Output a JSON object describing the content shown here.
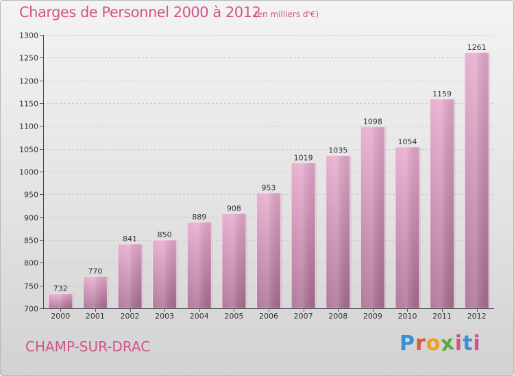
{
  "header": {
    "title": "Charges de Personnel 2000 à 2012",
    "subtitle": "(en milliers d'€)"
  },
  "footer": {
    "commune": "CHAMP-SUR-DRAC",
    "logo_text": "Proxiti"
  },
  "colors": {
    "accent": "#d0548a",
    "bar_top": "#e6a8cb",
    "bar_bottom": "#a86b92"
  },
  "chart_data": {
    "type": "bar",
    "title": "Charges de Personnel 2000 à 2012",
    "subtitle": "(en milliers d'€)",
    "xlabel": "",
    "ylabel": "",
    "categories": [
      "2000",
      "2001",
      "2002",
      "2003",
      "2004",
      "2005",
      "2006",
      "2007",
      "2008",
      "2009",
      "2010",
      "2011",
      "2012"
    ],
    "values": [
      732,
      770,
      841,
      850,
      889,
      908,
      953,
      1019,
      1035,
      1098,
      1054,
      1159,
      1261
    ],
    "ylim": [
      700,
      1300
    ],
    "yticks": [
      700,
      750,
      800,
      850,
      900,
      950,
      1000,
      1050,
      1100,
      1150,
      1200,
      1250,
      1300
    ],
    "grid": true
  }
}
